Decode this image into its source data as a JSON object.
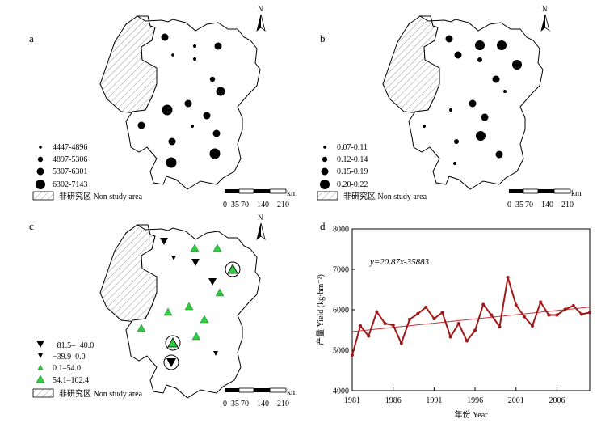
{
  "panels": [
    {
      "id": "a",
      "label": "a",
      "north": "N",
      "legend": [
        {
          "label": "4447-4896",
          "symbol": "circle",
          "size": 1
        },
        {
          "label": "4897-5306",
          "symbol": "circle",
          "size": 2
        },
        {
          "label": "5307-6301",
          "symbol": "circle",
          "size": 3
        },
        {
          "label": "6302-7143",
          "symbol": "circle",
          "size": 4
        }
      ],
      "non_study": "非研究区 Non study area",
      "scale": {
        "unit": "km",
        "ticks": [
          "0",
          "35",
          "70",
          "140",
          "210"
        ]
      }
    },
    {
      "id": "b",
      "label": "b",
      "north": "N",
      "legend": [
        {
          "label": "0.07-0.11",
          "symbol": "circle",
          "size": 1
        },
        {
          "label": "0.12-0.14",
          "symbol": "circle",
          "size": 2
        },
        {
          "label": "0.15-0.19",
          "symbol": "circle",
          "size": 3
        },
        {
          "label": "0.20-0.22",
          "symbol": "circle",
          "size": 4
        }
      ],
      "non_study": "非研究区 Non study area",
      "scale": {
        "unit": "km",
        "ticks": [
          "0",
          "35",
          "70",
          "140",
          "210"
        ]
      }
    },
    {
      "id": "c",
      "label": "c",
      "north": "N",
      "legend": [
        {
          "label": "−81.5–−40.0",
          "symbol": "triangle-down",
          "size": 2,
          "color": "#000000"
        },
        {
          "label": "−39.9–0.0",
          "symbol": "triangle-down",
          "size": 1,
          "color": "#000000"
        },
        {
          "label": "0.1–54.0",
          "symbol": "triangle-up",
          "size": 1,
          "color": "#2ecc40"
        },
        {
          "label": "54.1–102.4",
          "symbol": "triangle-up",
          "size": 2,
          "color": "#2ecc40"
        }
      ],
      "non_study": "非研究区 Non study area",
      "scale": {
        "unit": "km",
        "ticks": [
          "0",
          "35",
          "70",
          "140",
          "210"
        ]
      }
    }
  ],
  "chart_data": {
    "type": "line",
    "panel_label": "d",
    "ylabel": "产量 Yield (kg·hm⁻²)",
    "xlabel": "年份 Year",
    "equation": "y=20.87x-35883",
    "xlim": [
      1981,
      2010
    ],
    "ylim": [
      4000,
      8000
    ],
    "xticks": [
      1981,
      1986,
      1991,
      1996,
      2001,
      2006
    ],
    "yticks": [
      4000,
      5000,
      6000,
      7000,
      8000
    ],
    "line_color": "#a01818",
    "trend_color": "#d03030",
    "trend": {
      "slope": 20.87,
      "intercept": -35883
    },
    "series": [
      {
        "x": [
          1981,
          1982,
          1983,
          1984,
          1985,
          1986,
          1987,
          1988,
          1989,
          1990,
          1991,
          1992,
          1993,
          1994,
          1995,
          1996,
          1997,
          1998,
          1999,
          2000,
          2001,
          2002,
          2003,
          2004,
          2005,
          2006,
          2007,
          2008,
          2009,
          2010
        ],
        "values": [
          4880,
          5600,
          5350,
          5950,
          5660,
          5620,
          5170,
          5760,
          5900,
          6060,
          5780,
          5930,
          5330,
          5660,
          5230,
          5490,
          6130,
          5870,
          5580,
          6800,
          6120,
          5830,
          5600,
          6190,
          5870,
          5870,
          6010,
          6100,
          5890,
          5930
        ]
      }
    ]
  }
}
